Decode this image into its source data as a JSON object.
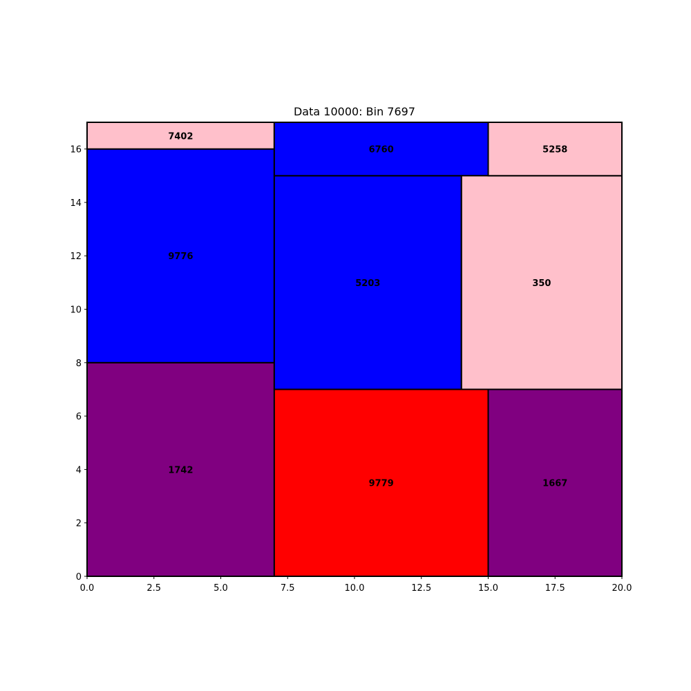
{
  "chart_data": {
    "type": "treemap",
    "title": "Data 10000: Bin 7697",
    "xlabel": "",
    "ylabel": "",
    "xlim": [
      0,
      20
    ],
    "ylim": [
      0,
      17
    ],
    "xticks": [
      0.0,
      2.5,
      5.0,
      7.5,
      10.0,
      12.5,
      15.0,
      17.5,
      20.0
    ],
    "xtick_labels": [
      "0.0",
      "2.5",
      "5.0",
      "7.5",
      "10.0",
      "12.5",
      "15.0",
      "17.5",
      "20.0"
    ],
    "yticks": [
      0,
      2,
      4,
      6,
      8,
      10,
      12,
      14,
      16
    ],
    "ytick_labels": [
      "0",
      "2",
      "4",
      "6",
      "8",
      "10",
      "12",
      "14",
      "16"
    ],
    "grid": false,
    "rectangles": [
      {
        "label": "1742",
        "x": 0,
        "y": 0,
        "w": 7,
        "h": 8,
        "color": "#800080"
      },
      {
        "label": "9776",
        "x": 0,
        "y": 8,
        "w": 7,
        "h": 8,
        "color": "#0000ff"
      },
      {
        "label": "7402",
        "x": 0,
        "y": 16,
        "w": 7,
        "h": 1,
        "color": "#ffc0cb"
      },
      {
        "label": "9779",
        "x": 7,
        "y": 0,
        "w": 8,
        "h": 7,
        "color": "#ff0000"
      },
      {
        "label": "5203",
        "x": 7,
        "y": 7,
        "w": 7,
        "h": 8,
        "color": "#0000ff"
      },
      {
        "label": "6760",
        "x": 7,
        "y": 15,
        "w": 8,
        "h": 2,
        "color": "#0000ff"
      },
      {
        "label": "1667",
        "x": 15,
        "y": 0,
        "w": 5,
        "h": 7,
        "color": "#800080"
      },
      {
        "label": "350",
        "x": 14,
        "y": 7,
        "w": 6,
        "h": 8,
        "color": "#ffc0cb"
      },
      {
        "label": "5258",
        "x": 15,
        "y": 15,
        "w": 5,
        "h": 2,
        "color": "#ffc0cb"
      }
    ]
  }
}
